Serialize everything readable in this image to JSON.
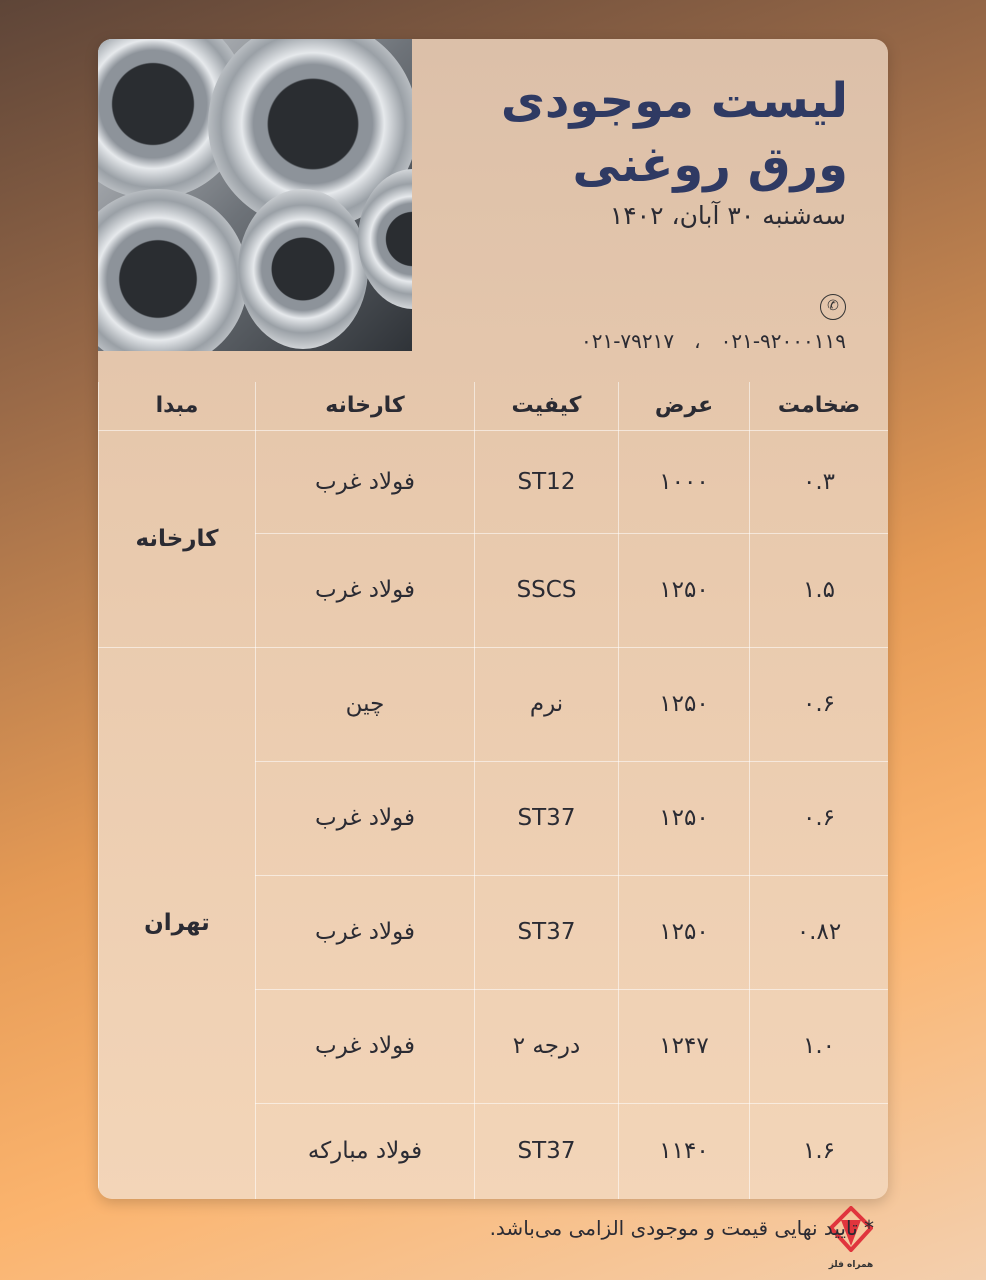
{
  "header": {
    "title_line1": "لیست موجودی",
    "title_line2": "ورق روغنی",
    "date": "سه‌شنبه ۳۰ آبان، ۱۴۰۲"
  },
  "contact": {
    "icon": "phone-icon",
    "phones": [
      "۰۲۱-۹۲۰۰۰۱۱۹",
      "۰۲۱-۷۹۲۱۷"
    ],
    "separator": "،"
  },
  "table": {
    "columns": [
      "ضخامت",
      "عرض",
      "کیفیت",
      "کارخانه",
      "مبدا"
    ],
    "groups": [
      {
        "origin": "کارخانه",
        "rows": [
          {
            "thickness": "۰.۳",
            "width": "۱۰۰۰",
            "grade": "ST12",
            "factory": "فولاد غرب"
          },
          {
            "thickness": "۱.۵",
            "width": "۱۲۵۰",
            "grade": "SSCS",
            "factory": "فولاد غرب"
          }
        ]
      },
      {
        "origin": "تهران",
        "rows": [
          {
            "thickness": "۰.۶",
            "width": "۱۲۵۰",
            "grade": "نرم",
            "factory": "چین"
          },
          {
            "thickness": "۰.۶",
            "width": "۱۲۵۰",
            "grade": "ST37",
            "factory": "فولاد غرب"
          },
          {
            "thickness": "۰.۸۲",
            "width": "۱۲۵۰",
            "grade": "ST37",
            "factory": "فولاد غرب"
          },
          {
            "thickness": "۱.۰",
            "width": "۱۲۴۷",
            "grade": "درجه ۲",
            "factory": "فولاد غرب"
          },
          {
            "thickness": "۱.۶",
            "width": "۱۱۴۰",
            "grade": "ST37",
            "factory": "فولاد مبارکه"
          }
        ]
      }
    ]
  },
  "footer": {
    "note": "* تایید نهایی قیمت و موجودی الزامی می‌باشد.",
    "logo_text": "همراه فلز"
  },
  "colors": {
    "title": "#2f3a63",
    "logo": "#e0353d"
  }
}
